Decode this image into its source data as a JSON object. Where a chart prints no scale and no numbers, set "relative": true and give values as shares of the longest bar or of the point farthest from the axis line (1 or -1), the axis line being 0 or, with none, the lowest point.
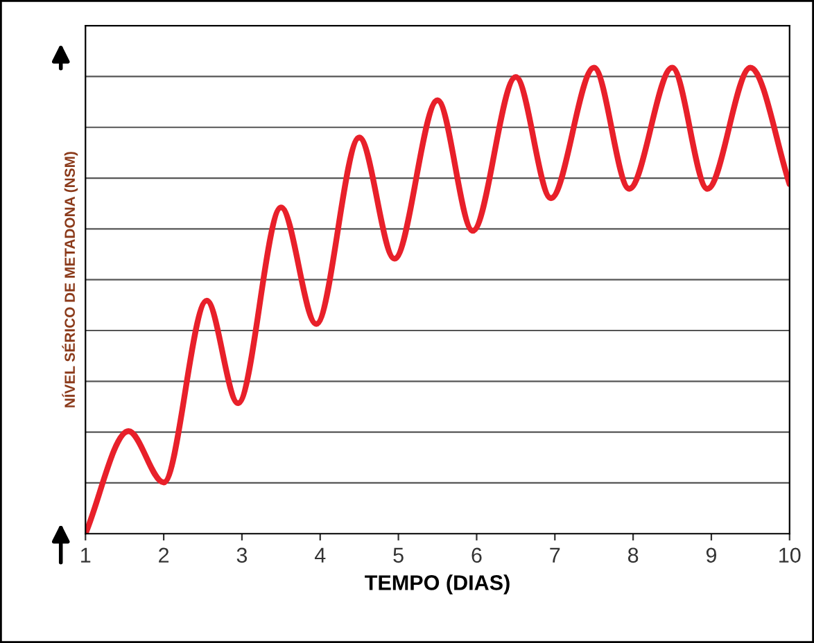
{
  "chart_data": {
    "type": "line",
    "relative": true,
    "xlabel": "TEMPO (DIAS)",
    "ylabel": "NÍVEL SÉRICO DE METADONA (NSM)",
    "x": [
      1,
      1.55,
      2.0,
      2.55,
      2.95,
      3.5,
      3.95,
      4.5,
      4.95,
      5.5,
      5.95,
      6.5,
      6.95,
      7.5,
      7.95,
      8.5,
      8.95,
      9.5,
      10
    ],
    "series": [
      {
        "color": "#e8202a",
        "values": [
          0,
          0.22,
          0.11,
          0.5,
          0.28,
          0.7,
          0.45,
          0.85,
          0.59,
          0.93,
          0.65,
          0.98,
          0.72,
          1,
          0.74,
          1,
          0.74,
          1,
          0.75
        ]
      }
    ],
    "xlim": [
      1,
      10
    ],
    "xticks": [
      1,
      2,
      3,
      4,
      5,
      6,
      7,
      8,
      9,
      10
    ],
    "grid": "y",
    "line_style": "solid"
  }
}
